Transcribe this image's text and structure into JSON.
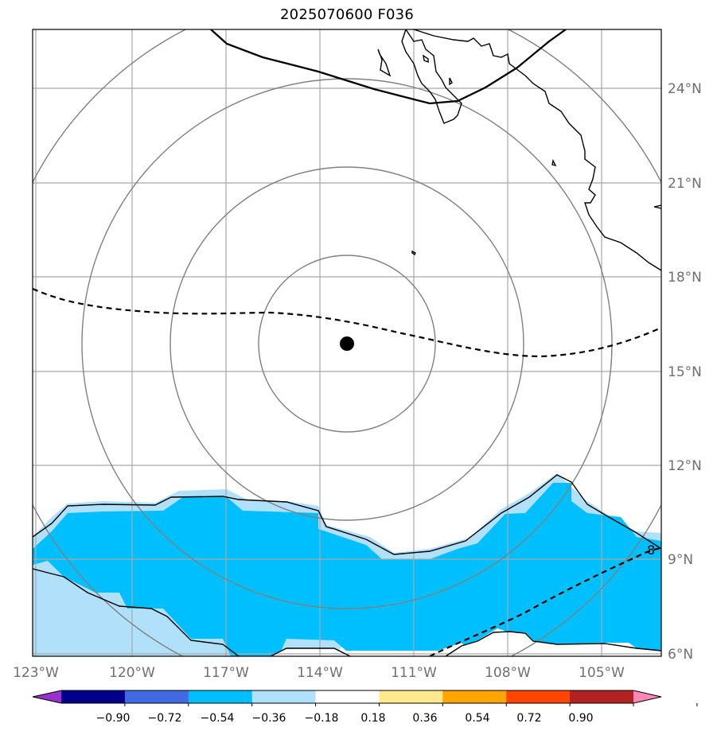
{
  "title": "2025070600 F036",
  "map": {
    "lon_labels": [
      "123°W",
      "120°W",
      "117°W",
      "114°W",
      "111°W",
      "108°W",
      "105°W"
    ],
    "lat_labels": [
      "24°N",
      "21°N",
      "18°N",
      "15°N",
      "12°N",
      "9°N",
      "6°N"
    ],
    "contour_label": "8",
    "storm_center": {
      "lon": "113.2°W",
      "lat": "15.8°N"
    }
  },
  "colorbar": {
    "ticks": [
      "−0.90",
      "−0.72",
      "−0.54",
      "−0.36",
      "−0.18",
      "0.18",
      "0.36",
      "0.54",
      "0.72",
      "0.90"
    ],
    "colors": [
      "#9932cc",
      "#00008b",
      "#4169e1",
      "#00bfff",
      "#b0e0fa",
      "#ffffff",
      "#ffe98c",
      "#ffa500",
      "#ff4500",
      "#b22222",
      "#ff88b6"
    ]
  }
}
